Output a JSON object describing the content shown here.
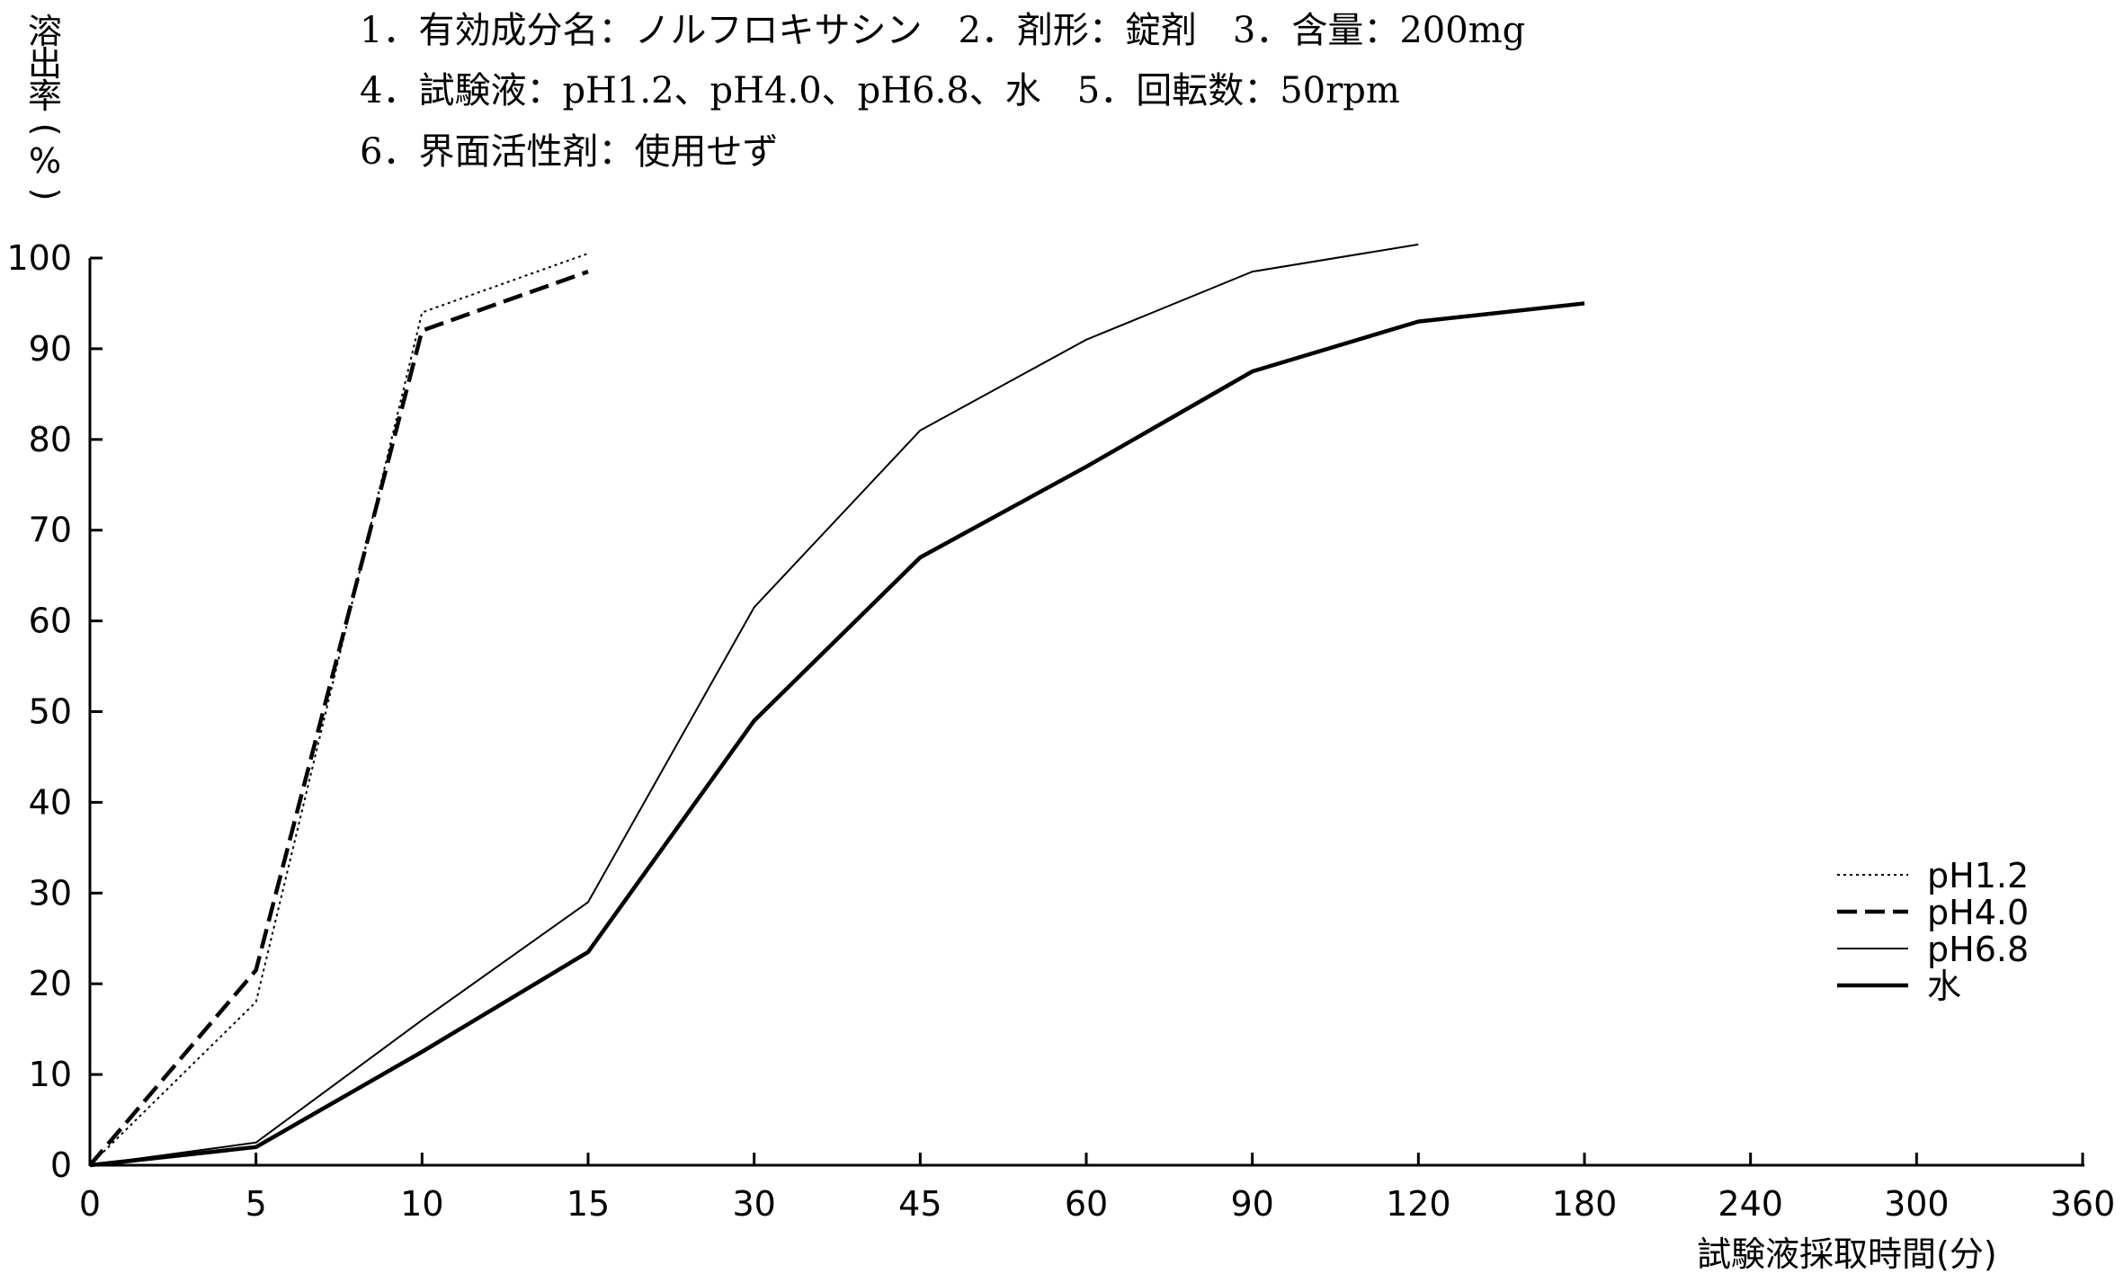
{
  "chart_data": {
    "type": "line",
    "header_lines": [
      "1．有効成分名：ノルフロキサシン　2．剤形：錠剤　3．含量：200mg",
      "4．試験液：pH1.2、pH4.0、pH6.8、水　5．回転数：50rpm",
      "6．界面活性剤：使用せず"
    ],
    "ylabel_chars": [
      "溶",
      "出",
      "率",
      "(",
      "%",
      ")"
    ],
    "xlabel": "試験液採取時間(分)",
    "x_categories": [
      "0",
      "5",
      "10",
      "15",
      "30",
      "45",
      "60",
      "90",
      "120",
      "180",
      "240",
      "300",
      "360"
    ],
    "y_ticks": [
      "0",
      "10",
      "20",
      "30",
      "40",
      "50",
      "60",
      "70",
      "80",
      "90",
      "100"
    ],
    "ylim": [
      0,
      100
    ],
    "grid": false,
    "legend_placement": "right",
    "series": [
      {
        "name": "pH1.2",
        "style": "dotted",
        "values": [
          0,
          18,
          94,
          100.5
        ]
      },
      {
        "name": "pH4.0",
        "style": "dashed",
        "values": [
          0,
          21.5,
          92,
          98.5
        ]
      },
      {
        "name": "pH6.8",
        "style": "thin",
        "values": [
          0,
          2.5,
          16,
          29,
          61.5,
          81,
          91,
          98.5,
          101.5
        ]
      },
      {
        "name": "水",
        "style": "thick",
        "values": [
          0,
          2,
          12.5,
          23.5,
          49,
          67,
          77,
          87.5,
          93,
          95
        ]
      }
    ]
  }
}
